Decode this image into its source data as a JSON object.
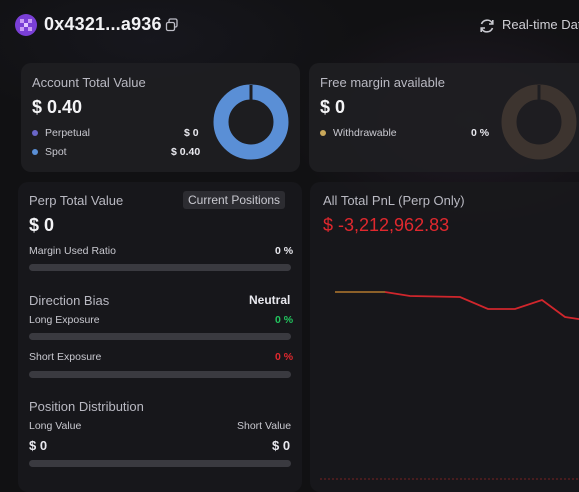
{
  "header": {
    "address": "0x4321...a936",
    "realtime_label": "Real-time Data"
  },
  "account": {
    "title": "Account Total Value",
    "value": "$ 0.40",
    "rows": [
      {
        "label": "Perpetual",
        "value": "$ 0",
        "color": "#6a66c8"
      },
      {
        "label": "Spot",
        "value": "$ 0.40",
        "color": "#5a8fd6"
      }
    ]
  },
  "free_margin": {
    "title": "Free margin available",
    "value": "$ 0",
    "withdrawable_label": "Withdrawable",
    "withdrawable_value": "0 %",
    "dot_color": "#c9a85a"
  },
  "perp": {
    "title": "Perp Total Value",
    "tab_label": "Current Positions",
    "value": "$ 0",
    "margin_label": "Margin Used Ratio",
    "margin_value": "0 %",
    "direction_title": "Direction Bias",
    "direction_value": "Neutral",
    "long_label": "Long Exposure",
    "long_value": "0 %",
    "short_label": "Short Exposure",
    "short_value": "0 %",
    "distribution_title": "Position Distribution",
    "long_value_label": "Long Value",
    "long_value_amount": "$ 0",
    "short_value_label": "Short Value",
    "short_value_amount": "$ 0"
  },
  "pnl": {
    "title": "All Total PnL (Perp Only)",
    "value": "$ -3,212,962.83"
  },
  "colors": {
    "accent_blue": "#5a8fd6",
    "loss_red": "#e0282e",
    "gain_green": "#22c55e"
  }
}
